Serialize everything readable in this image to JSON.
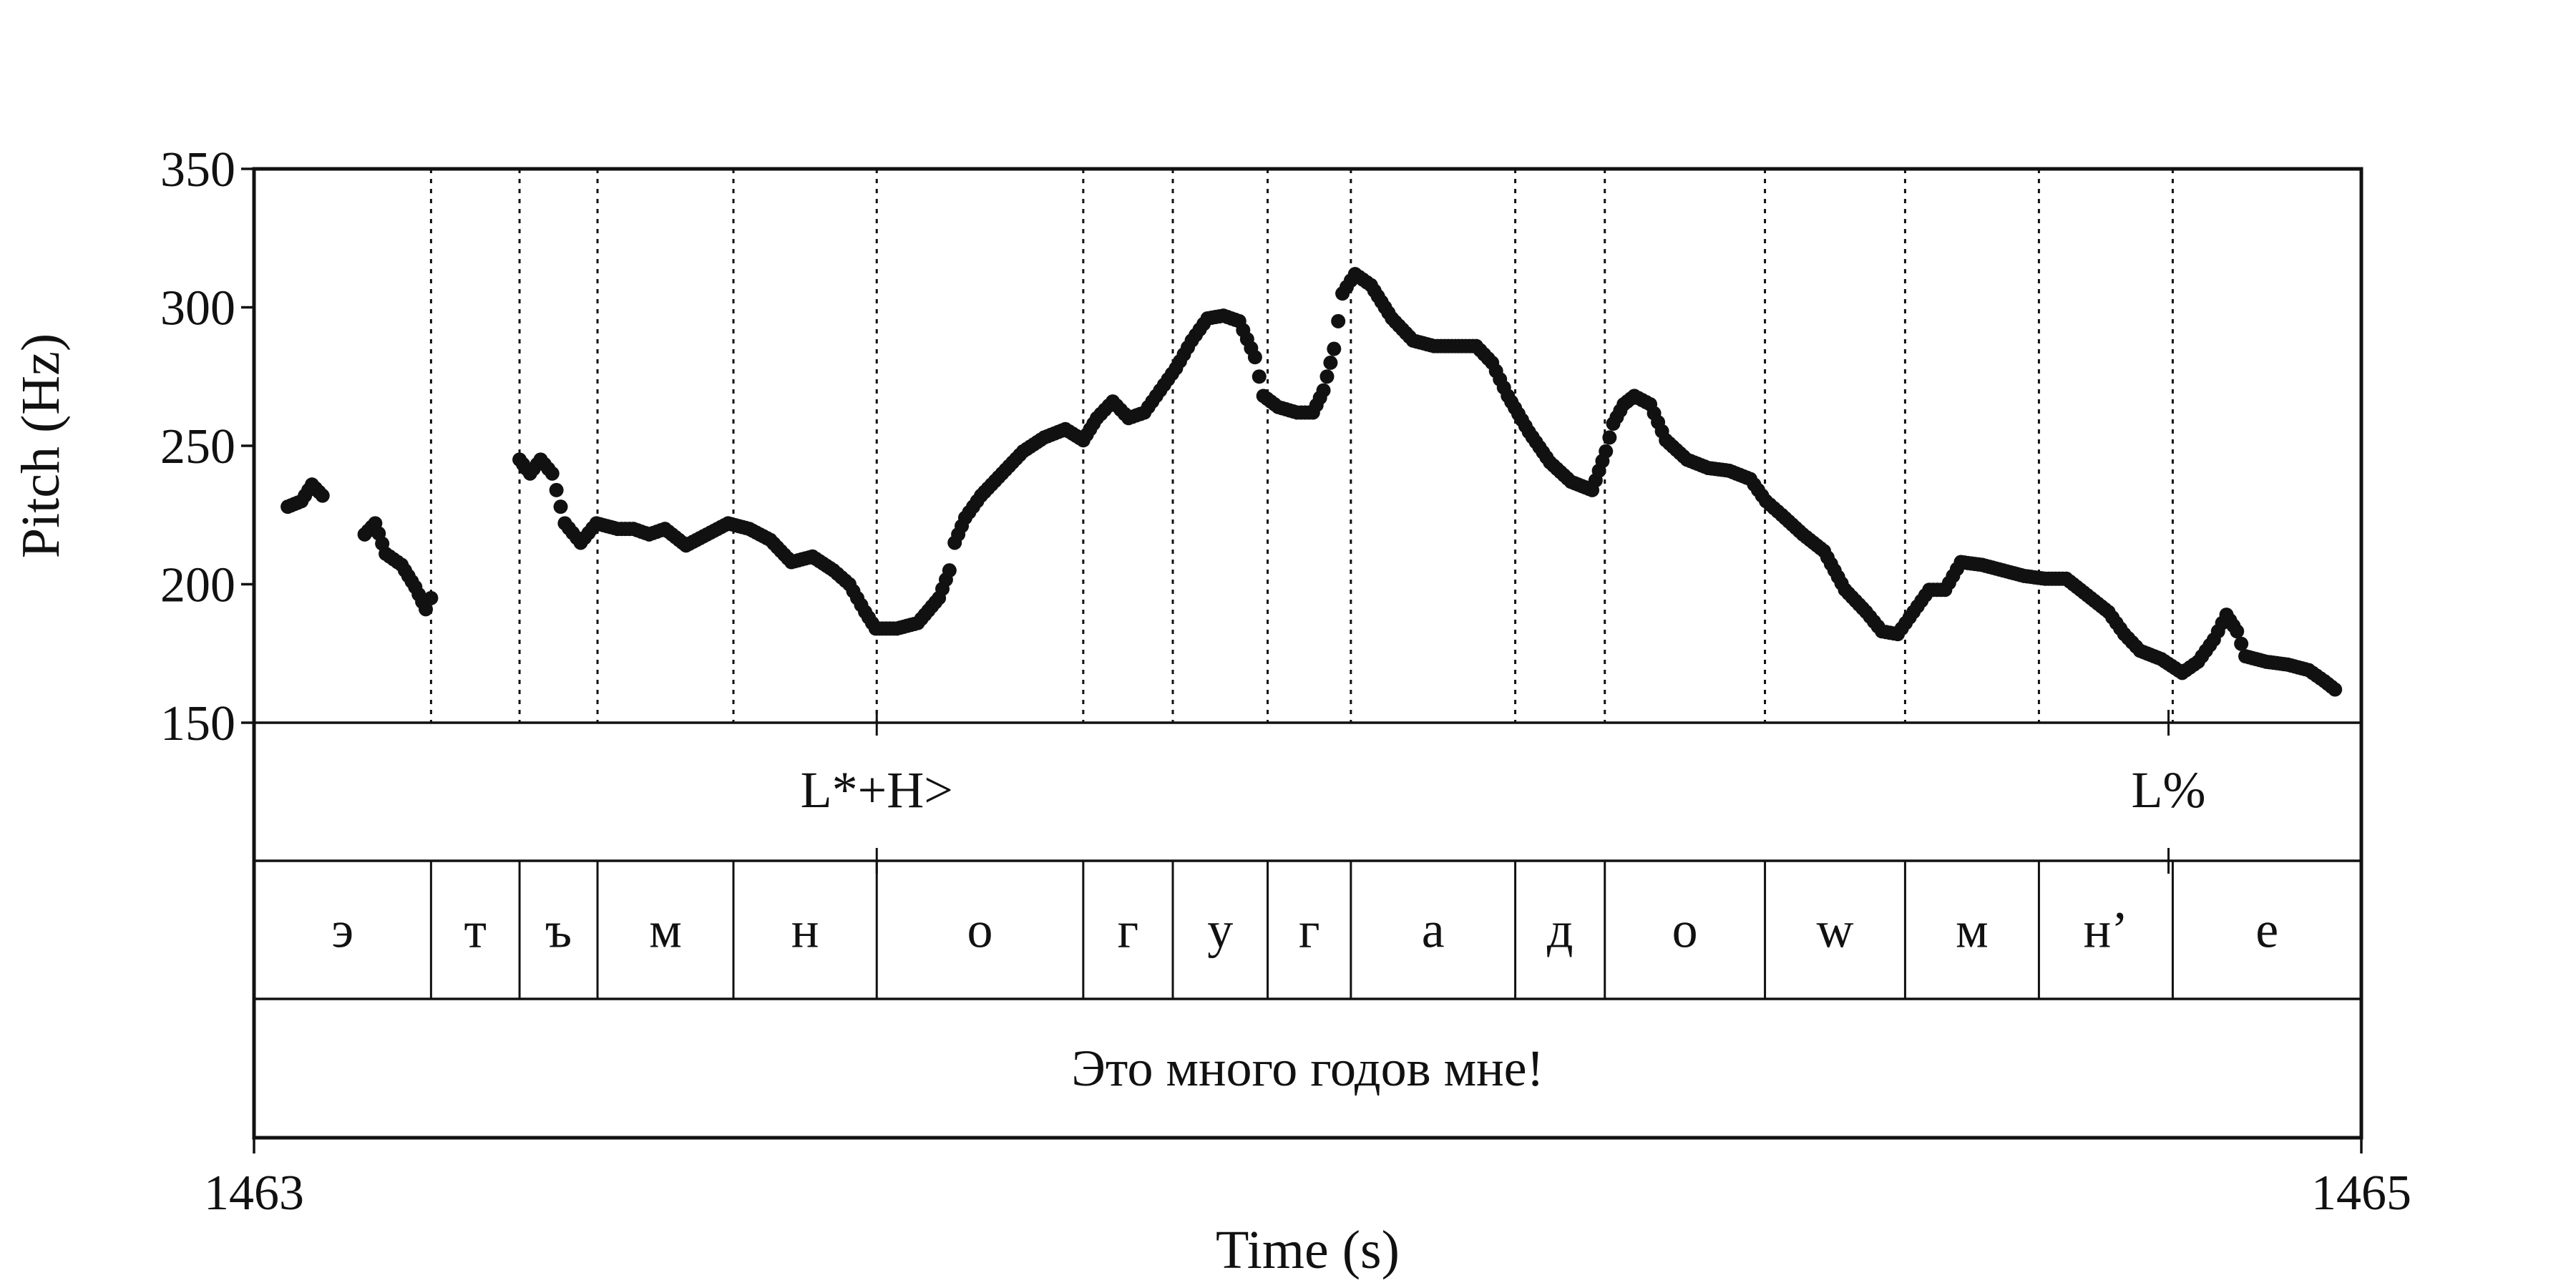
{
  "chart_data": {
    "type": "scatter",
    "title": "",
    "xlabel": "Time (s)",
    "ylabel": "Pitch (Hz)",
    "xlim": [
      1463,
      1465
    ],
    "ylim": [
      150,
      350
    ],
    "x_ticks": [
      "1463",
      "1465"
    ],
    "y_ticks": [
      "350",
      "300",
      "250",
      "200",
      "150"
    ],
    "tiers": {
      "tones": [
        {
          "label": "L*+H>",
          "t": 1463.591
        },
        {
          "label": "L%",
          "t": 1464.817
        }
      ],
      "segments": [
        {
          "label": "э",
          "start": 1463.0,
          "end": 1463.168
        },
        {
          "label": "т",
          "start": 1463.168,
          "end": 1463.252
        },
        {
          "label": "ъ",
          "start": 1463.252,
          "end": 1463.326
        },
        {
          "label": "м",
          "start": 1463.326,
          "end": 1463.455
        },
        {
          "label": "н",
          "start": 1463.455,
          "end": 1463.591
        },
        {
          "label": "о",
          "start": 1463.591,
          "end": 1463.787
        },
        {
          "label": "г",
          "start": 1463.787,
          "end": 1463.872
        },
        {
          "label": "у",
          "start": 1463.872,
          "end": 1463.962
        },
        {
          "label": "г",
          "start": 1463.962,
          "end": 1464.041
        },
        {
          "label": "а",
          "start": 1464.041,
          "end": 1464.197
        },
        {
          "label": "д",
          "start": 1464.197,
          "end": 1464.282
        },
        {
          "label": "о",
          "start": 1464.282,
          "end": 1464.434
        },
        {
          "label": "w",
          "start": 1464.434,
          "end": 1464.567
        },
        {
          "label": "м",
          "start": 1464.567,
          "end": 1464.694
        },
        {
          "label": "н’",
          "start": 1464.694,
          "end": 1464.821
        },
        {
          "label": "е",
          "start": 1464.821,
          "end": 1465.0
        }
      ],
      "sentence": "Это много годов мне!"
    },
    "series": [
      {
        "contours": [
          [
            [
              1463.032,
              228
            ],
            [
              1463.045,
              230
            ],
            [
              1463.055,
              236
            ],
            [
              1463.065,
              232
            ]
          ],
          [
            [
              1463.105,
              218
            ],
            [
              1463.115,
              222
            ],
            [
              1463.125,
              211
            ],
            [
              1463.14,
              207
            ],
            [
              1463.153,
              199
            ],
            [
              1463.163,
              191
            ],
            [
              1463.168,
              195
            ]
          ],
          [
            [
              1463.252,
              245
            ],
            [
              1463.262,
              240
            ],
            [
              1463.272,
              245
            ],
            [
              1463.283,
              240
            ],
            [
              1463.295,
              222
            ],
            [
              1463.31,
              215
            ],
            [
              1463.325,
              222
            ],
            [
              1463.345,
              220
            ],
            [
              1463.36,
              220
            ],
            [
              1463.375,
              218
            ],
            [
              1463.39,
              220
            ],
            [
              1463.41,
              214
            ],
            [
              1463.43,
              218
            ],
            [
              1463.45,
              222
            ],
            [
              1463.47,
              220
            ],
            [
              1463.49,
              216
            ],
            [
              1463.51,
              208
            ],
            [
              1463.53,
              210
            ],
            [
              1463.55,
              205
            ],
            [
              1463.565,
              200
            ],
            [
              1463.58,
              190
            ],
            [
              1463.59,
              184
            ],
            [
              1463.61,
              184
            ],
            [
              1463.63,
              186
            ],
            [
              1463.65,
              195
            ],
            [
              1463.66,
              205
            ],
            [
              1463.665,
              215
            ],
            [
              1463.675,
              224
            ],
            [
              1463.69,
              232
            ],
            [
              1463.71,
              240
            ],
            [
              1463.73,
              248
            ],
            [
              1463.75,
              253
            ],
            [
              1463.77,
              256
            ],
            [
              1463.787,
              252
            ],
            [
              1463.8,
              260
            ],
            [
              1463.815,
              266
            ],
            [
              1463.83,
              260
            ],
            [
              1463.845,
              262
            ],
            [
              1463.86,
              270
            ],
            [
              1463.875,
              278
            ],
            [
              1463.89,
              288
            ],
            [
              1463.905,
              296
            ],
            [
              1463.92,
              297
            ],
            [
              1463.935,
              295
            ],
            [
              1463.95,
              282
            ],
            [
              1463.958,
              268
            ],
            [
              1463.972,
              264
            ],
            [
              1463.99,
              262
            ],
            [
              1464.005,
              262
            ],
            [
              1464.015,
              270
            ],
            [
              1464.025,
              285
            ],
            [
              1464.033,
              305
            ],
            [
              1464.045,
              312
            ],
            [
              1464.06,
              308
            ],
            [
              1464.08,
              296
            ],
            [
              1464.1,
              288
            ],
            [
              1464.12,
              286
            ],
            [
              1464.14,
              286
            ],
            [
              1464.16,
              286
            ],
            [
              1464.175,
              280
            ],
            [
              1464.19,
              268
            ],
            [
              1464.21,
              255
            ],
            [
              1464.23,
              244
            ],
            [
              1464.25,
              237
            ],
            [
              1464.27,
              234
            ],
            [
              1464.283,
              248
            ],
            [
              1464.29,
              258
            ],
            [
              1464.3,
              265
            ],
            [
              1464.31,
              268
            ],
            [
              1464.325,
              265
            ],
            [
              1464.34,
              252
            ],
            [
              1464.36,
              245
            ],
            [
              1464.38,
              242
            ],
            [
              1464.4,
              241
            ],
            [
              1464.42,
              238
            ],
            [
              1464.435,
              230
            ],
            [
              1464.45,
              225
            ],
            [
              1464.47,
              218
            ],
            [
              1464.49,
              212
            ],
            [
              1464.51,
              198
            ],
            [
              1464.53,
              190
            ],
            [
              1464.545,
              183
            ],
            [
              1464.56,
              182
            ],
            [
              1464.575,
              190
            ],
            [
              1464.59,
              198
            ],
            [
              1464.605,
              198
            ],
            [
              1464.62,
              208
            ],
            [
              1464.64,
              207
            ],
            [
              1464.66,
              205
            ],
            [
              1464.68,
              203
            ],
            [
              1464.7,
              202
            ],
            [
              1464.72,
              202
            ],
            [
              1464.74,
              196
            ],
            [
              1464.76,
              190
            ],
            [
              1464.775,
              182
            ],
            [
              1464.79,
              176
            ],
            [
              1464.81,
              173
            ],
            [
              1464.83,
              168
            ],
            [
              1464.845,
              172
            ],
            [
              1464.86,
              180
            ],
            [
              1464.872,
              189
            ],
            [
              1464.882,
              183
            ],
            [
              1464.89,
              174
            ],
            [
              1464.91,
              172
            ],
            [
              1464.93,
              171
            ],
            [
              1464.95,
              169
            ],
            [
              1464.965,
              165
            ],
            [
              1464.975,
              162
            ]
          ]
        ]
      }
    ]
  }
}
